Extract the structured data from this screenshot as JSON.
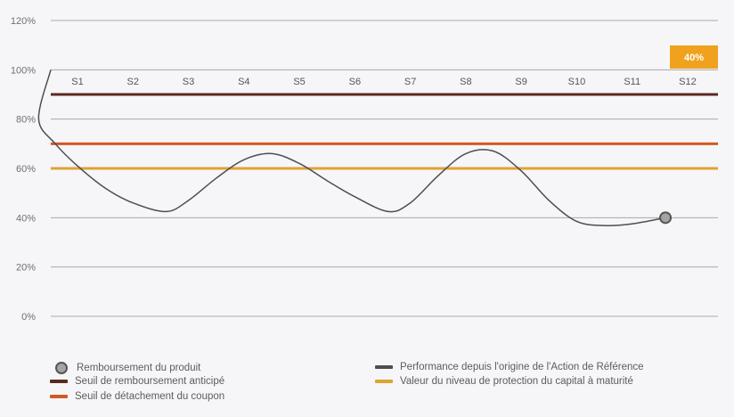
{
  "chart_data": {
    "type": "line",
    "y_ticks": [
      "120%",
      "100%",
      "80%",
      "60%",
      "40%",
      "20%",
      "0%"
    ],
    "ylim": [
      0,
      120
    ],
    "periods": [
      "S1",
      "S2",
      "S3",
      "S4",
      "S5",
      "S6",
      "S7",
      "S8",
      "S9",
      "S10",
      "S11",
      "S12"
    ],
    "series": [
      {
        "name": "Performance depuis l'origine de l'Action de Référence",
        "color": "#4d4d55",
        "x": [
          0,
          0.3,
          0.6,
          1.0,
          1.5,
          2.0,
          2.6,
          3.0,
          3.5,
          4.0,
          4.5,
          5.0,
          5.5,
          6.0,
          6.6,
          7.0,
          7.5,
          8.0,
          8.5,
          9.0,
          9.5,
          10.0,
          10.5,
          11.0,
          11.6
        ],
        "y": [
          100,
          80,
          70,
          61,
          52,
          46,
          42.5,
          47,
          56,
          63.5,
          66,
          62,
          55,
          48.5,
          42.5,
          46,
          57,
          66,
          67,
          59,
          47,
          38.5,
          36.8,
          37.5,
          40
        ]
      }
    ],
    "thresholds": [
      {
        "name": "Seuil de remboursement anticipé",
        "value": 90,
        "color": "#5a2a20"
      },
      {
        "name": "Seuil de détachement du coupon",
        "value": 70,
        "color": "#d25a1e"
      },
      {
        "name": "Valeur du niveau de protection du capital à maturité",
        "value": 60,
        "color": "#e0a234"
      }
    ],
    "final_point": {
      "name": "Remboursement du produit",
      "x": 11.6,
      "y": 40,
      "label": "40%"
    },
    "badge_color": "#f0a21e"
  },
  "legend": {
    "item1": "Remboursement du produit",
    "item2": "Seuil de remboursement anticipé",
    "item3": "Seuil de détachement du coupon",
    "item4": "Performance depuis l'origine de l'Action de Référence",
    "item5": "Valeur du niveau de protection du capital à maturité"
  }
}
